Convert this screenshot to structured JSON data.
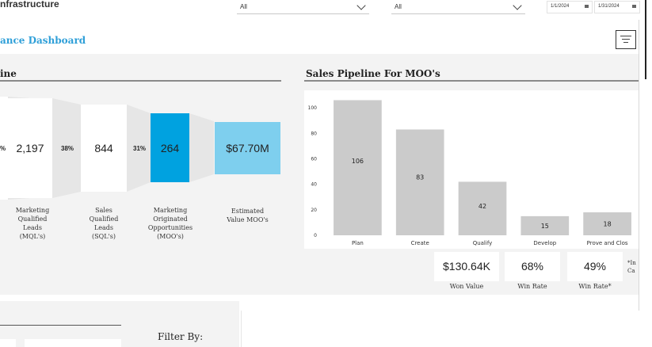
{
  "header": {
    "app_title": "nfrastructure",
    "select1": "All",
    "select2": "All",
    "date_start": "1/1/2024",
    "date_end": "1/31/2024",
    "dashboard_title": "ance Dashboard"
  },
  "funnel": {
    "title": "ine",
    "first_pct": "%",
    "stages": [
      {
        "value": "2,197",
        "label_lines": [
          "Marketing",
          "Qualified",
          "Leads",
          "(MQL's)"
        ]
      },
      {
        "value": "844",
        "label_lines": [
          "Sales",
          "Qualified",
          "Leads",
          "(SQL's)"
        ]
      },
      {
        "value": "264",
        "label_lines": [
          "Marketing",
          "Originated",
          "Opportunities",
          "(MOO's)"
        ]
      },
      {
        "value": "$67.70M",
        "label_lines": [
          "Estimated",
          "Value MOO's"
        ]
      }
    ],
    "conversions": [
      "38%",
      "31%"
    ]
  },
  "pipeline": {
    "title": "Sales Pipeline For MOO's"
  },
  "chart_data": {
    "type": "bar",
    "title": "Sales Pipeline For MOO's",
    "categories": [
      "Plan",
      "Create",
      "Qualify",
      "Develop",
      "Prove and Close"
    ],
    "category_labels_shown": [
      "Plan",
      "Create",
      "Qualify",
      "Develop",
      "Prove and Clos"
    ],
    "values": [
      106,
      83,
      42,
      15,
      18
    ],
    "ylim": [
      0,
      110
    ],
    "yticks": [
      0,
      20,
      40,
      60,
      80,
      100
    ],
    "grid": false,
    "bar_color": "#cbcbcb"
  },
  "kpis": [
    {
      "value": "$130.64K",
      "label": "Won Value"
    },
    {
      "value": "68%",
      "label": "Win Rate"
    },
    {
      "value": "49%",
      "label": "Win Rate*"
    }
  ],
  "note": {
    "line1": "*In",
    "line2": "Ca"
  },
  "bottom": {
    "filter_label": "Filter By:"
  },
  "colors": {
    "accent_blue": "#00a2e0",
    "light_blue": "#7ecfee",
    "title_blue": "#2e9fd8"
  }
}
